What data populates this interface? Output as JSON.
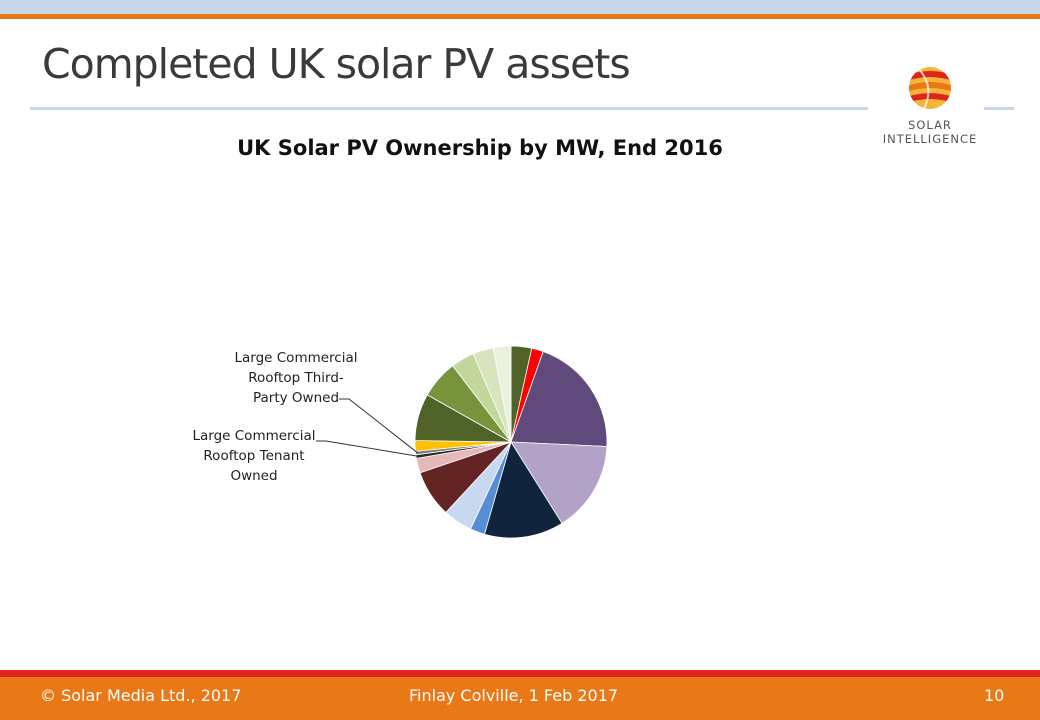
{
  "slide": {
    "title": "Completed UK solar PV assets",
    "page_number": "10"
  },
  "logo": {
    "line1": "SOLAR",
    "line2": "INTELLIGENCE"
  },
  "footer": {
    "copyright": "© Solar Media Ltd., 2017",
    "author_date": "Finlay Colville, 1 Feb 2017"
  },
  "colors": {
    "accent_orange": "#e97817",
    "footer_red": "#e0241c",
    "header_blue": "#c9d7ea"
  },
  "chart_data": {
    "type": "pie",
    "title": "UK Solar PV Ownership by MW, End 2016",
    "start": "12 o'clock",
    "direction": "clockwise",
    "slices": [
      {
        "label": "",
        "value": 3.5,
        "color": "#4f6228"
      },
      {
        "label": "",
        "value": 2.0,
        "color": "#ff0000"
      },
      {
        "label": "",
        "value": 20.5,
        "color": "#604a7b"
      },
      {
        "label": "",
        "value": 15.5,
        "color": "#b3a2c7"
      },
      {
        "label": "",
        "value": 13.5,
        "color": "#10243e"
      },
      {
        "label": "",
        "value": 2.5,
        "color": "#558ed5"
      },
      {
        "label": "",
        "value": 5.0,
        "color": "#c6d9f1"
      },
      {
        "label": "",
        "value": 8.0,
        "color": "#632523"
      },
      {
        "label": "",
        "value": 2.5,
        "color": "#e6b9b8"
      },
      {
        "label": "Large Commercial Rooftop Tenant Owned",
        "value": 0.6,
        "color": "#262626"
      },
      {
        "label": "Large Commercial Rooftop Third-Party Owned",
        "value": 0.6,
        "color": "#7f7f7f"
      },
      {
        "label": "",
        "value": 1.8,
        "color": "#ffc000"
      },
      {
        "label": "",
        "value": 8.0,
        "color": "#4f6228"
      },
      {
        "label": "",
        "value": 6.5,
        "color": "#77933c"
      },
      {
        "label": "",
        "value": 4.0,
        "color": "#c3d69b"
      },
      {
        "label": "",
        "value": 3.5,
        "color": "#d7e4bd"
      },
      {
        "label": "",
        "value": 3.0,
        "color": "#ebf1de"
      }
    ],
    "callouts": [
      {
        "text": "Large Commercial\nRooftop Third-\nParty Owned",
        "slice_index": 10
      },
      {
        "text": "Large Commercial\nRooftop Tenant\nOwned",
        "slice_index": 9
      }
    ]
  }
}
